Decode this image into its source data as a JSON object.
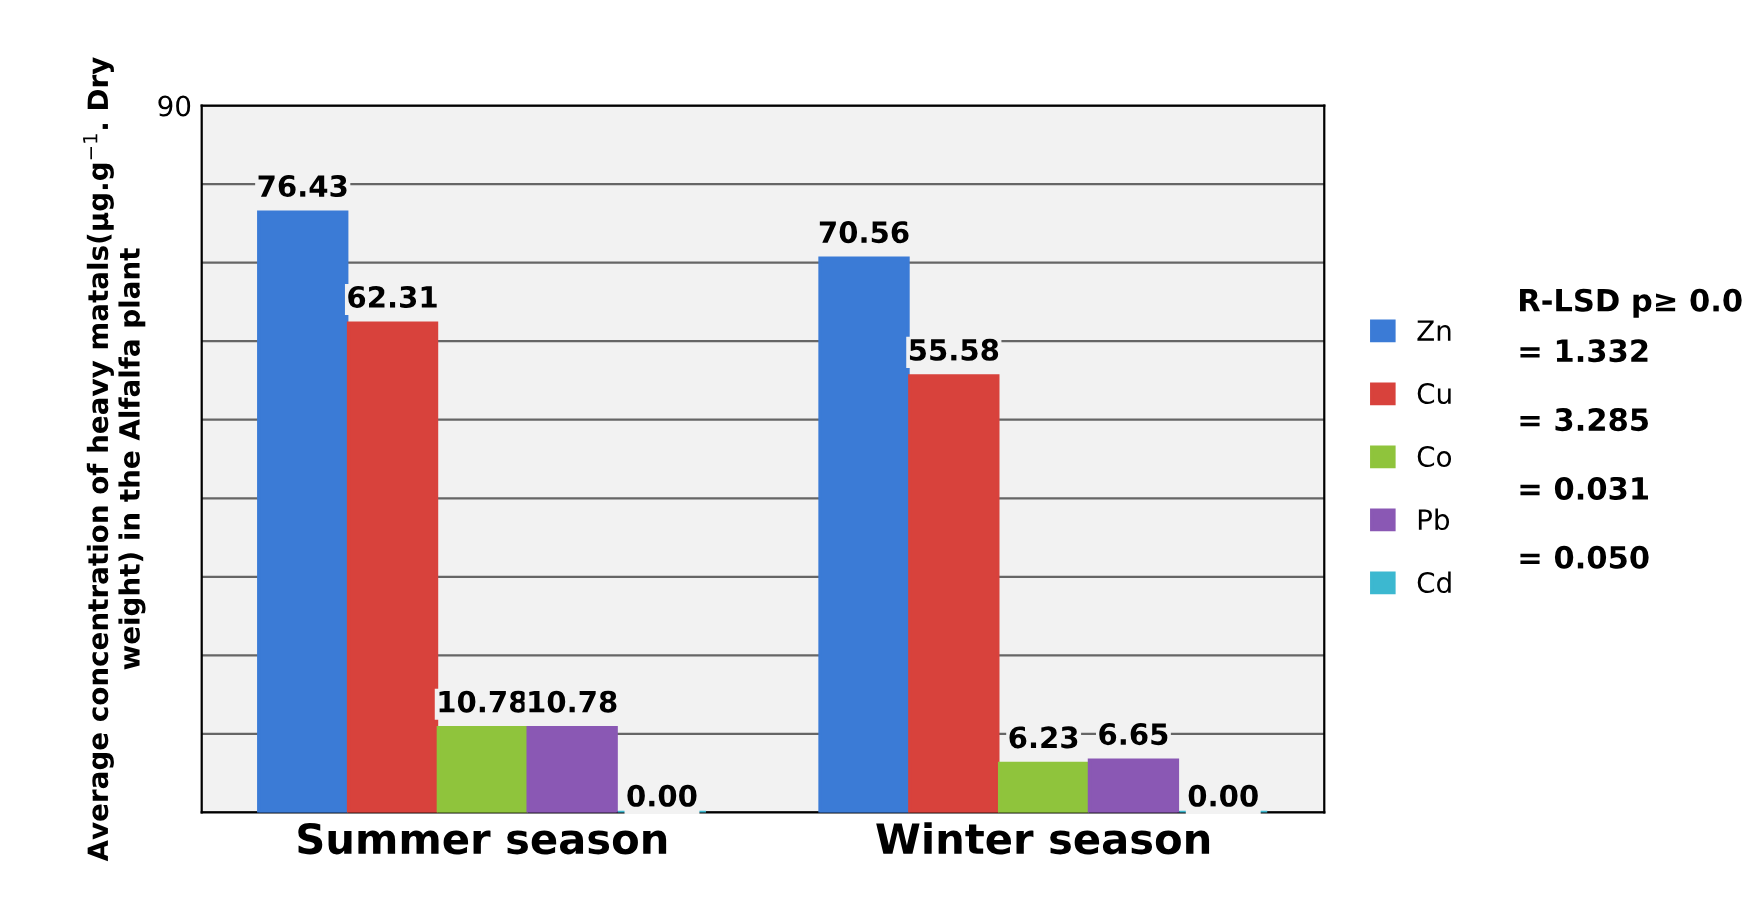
{
  "chart_data": {
    "type": "bar",
    "categories": [
      "Summer season",
      "Winter season"
    ],
    "ylabel": "Average concentration of heavy matals(µg.g$^{−1}$. Dry weight) in the Alfalfa plant",
    "series": [
      {
        "name": "Zn",
        "color": "#3b7bd6",
        "values": [
          76.43,
          70.56
        ],
        "value_labels": [
          "76.43",
          "70.56"
        ]
      },
      {
        "name": "Cu",
        "color": "#d8423c",
        "values": [
          62.31,
          55.58
        ],
        "value_labels": [
          "62.31",
          "55.58"
        ]
      },
      {
        "name": "Co",
        "color": "#8fc43c",
        "values": [
          10.78,
          6.23
        ],
        "value_labels": [
          "10.78",
          "6.23"
        ]
      },
      {
        "name": "Pb",
        "color": "#8a58b4",
        "values": [
          10.78,
          6.65
        ],
        "value_labels": [
          "10.78",
          "6.65"
        ]
      },
      {
        "name": "Cd",
        "color": "#3cb8d0",
        "values": [
          0.0,
          0.0
        ],
        "value_labels": [
          "0.00",
          "0.00"
        ]
      }
    ],
    "ylim": [
      0,
      90
    ],
    "yticks": [
      {
        "value": 0,
        "label": null
      },
      {
        "value": 10,
        "label": null
      },
      {
        "value": 20,
        "label": null
      },
      {
        "value": 30,
        "label": null
      },
      {
        "value": 40,
        "label": null
      },
      {
        "value": 50,
        "label": null
      },
      {
        "value": 60,
        "label": null
      },
      {
        "value": 70,
        "label": null
      },
      {
        "value": 80,
        "label": null
      },
      90
    ],
    "grid": "y",
    "legend": "right",
    "annotations": [
      "R-LSD p≥ 0.0",
      "= 1.332",
      "= 3.285",
      "= 0.031",
      "= 0.050"
    ]
  }
}
